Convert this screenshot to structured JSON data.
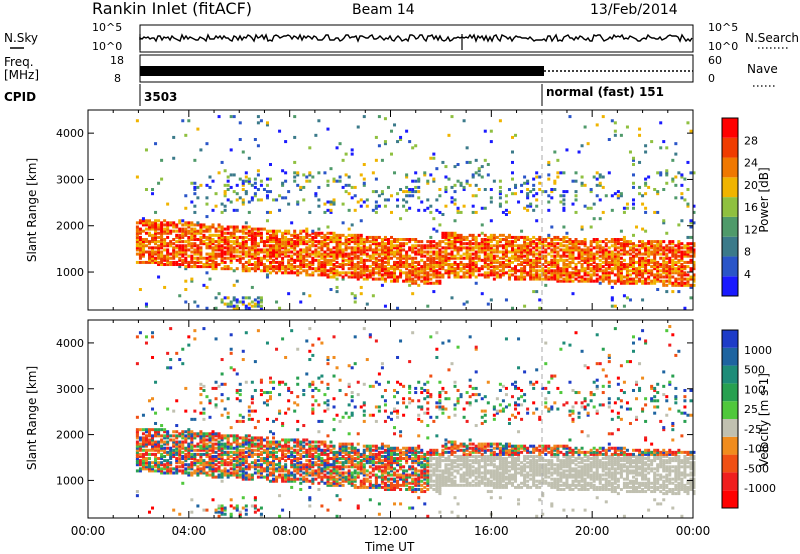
{
  "header": {
    "station": "Rankin Inlet (fitACF)",
    "beam": "Beam 14",
    "date": "13/Feb/2014"
  },
  "noise_panel": {
    "left_label": "N.Sky",
    "right_label": "N.Search",
    "left_ticks": [
      "10^5",
      "10^0"
    ],
    "right_ticks": [
      "10^5",
      "10^0"
    ]
  },
  "freq_panel": {
    "left_label_1": "Freq.",
    "left_label_2": "[MHz]",
    "right_label": "Nave",
    "left_ticks": [
      "18",
      "8"
    ],
    "right_ticks": [
      "60",
      "0"
    ]
  },
  "cpid": {
    "label": "CPID",
    "first_id": "3503",
    "second_mode": "normal (fast) 151"
  },
  "colors": {
    "power_scale": [
      "#1a1aff",
      "#2a55c8",
      "#3b7a8a",
      "#4f9a6a",
      "#8fc040",
      "#f0b400",
      "#f07800",
      "#f03c00",
      "#ff0000"
    ],
    "velocity_scale": [
      "#1e3cc8",
      "#1e64a0",
      "#1e8c78",
      "#28a050",
      "#50c83c",
      "#c0c0b0",
      "#f08c1e",
      "#f05014",
      "#f01e1e",
      "#ff0000"
    ]
  },
  "chart_data": [
    {
      "type": "heatmap",
      "panel": "power",
      "ylabel": "Slant Range [km]",
      "ylim": [
        180,
        4500
      ],
      "yticks": [
        "4000",
        "3000",
        "2000",
        "1000"
      ],
      "xlim_hours": [
        0,
        24
      ],
      "colorbar_label": "Power [dB]",
      "colorbar_ticks": [
        "28",
        "24",
        "20",
        "16",
        "12",
        "8",
        "4"
      ],
      "colorbar_range": [
        0,
        30
      ],
      "features": [
        {
          "name": "main-echo-band",
          "time_h": [
            2,
            24
          ],
          "range_km": [
            700,
            2200
          ],
          "power_db": [
            14,
            30
          ]
        },
        {
          "name": "upper-scatter",
          "time_h": [
            4,
            24
          ],
          "range_km": [
            2200,
            3200
          ],
          "power_db": [
            6,
            20
          ]
        }
      ]
    },
    {
      "type": "heatmap",
      "panel": "velocity",
      "xlabel": "Time UT",
      "ylabel": "Slant Range [km]",
      "ylim": [
        180,
        4500
      ],
      "yticks": [
        "4000",
        "3000",
        "2000",
        "1000"
      ],
      "xticks": [
        "00:00",
        "04:00",
        "08:00",
        "12:00",
        "16:00",
        "20:00",
        "00:00"
      ],
      "xlim_hours": [
        0,
        24
      ],
      "colorbar_label": "Velocity [m s-1]",
      "colorbar_ticks": [
        "1000",
        "500",
        "100",
        "25",
        "-25",
        "-100",
        "-500",
        "-1000"
      ],
      "colorbar_range": [
        -1000,
        1000
      ],
      "features": [
        {
          "name": "negative-velocity-band",
          "time_h": [
            2,
            13
          ],
          "range_km": [
            900,
            2100
          ],
          "velocity_ms": [
            -500,
            -100
          ]
        },
        {
          "name": "ground-scatter-band",
          "time_h": [
            14,
            24
          ],
          "range_km": [
            700,
            1600
          ],
          "velocity_ms": [
            -25,
            25
          ]
        }
      ]
    }
  ]
}
